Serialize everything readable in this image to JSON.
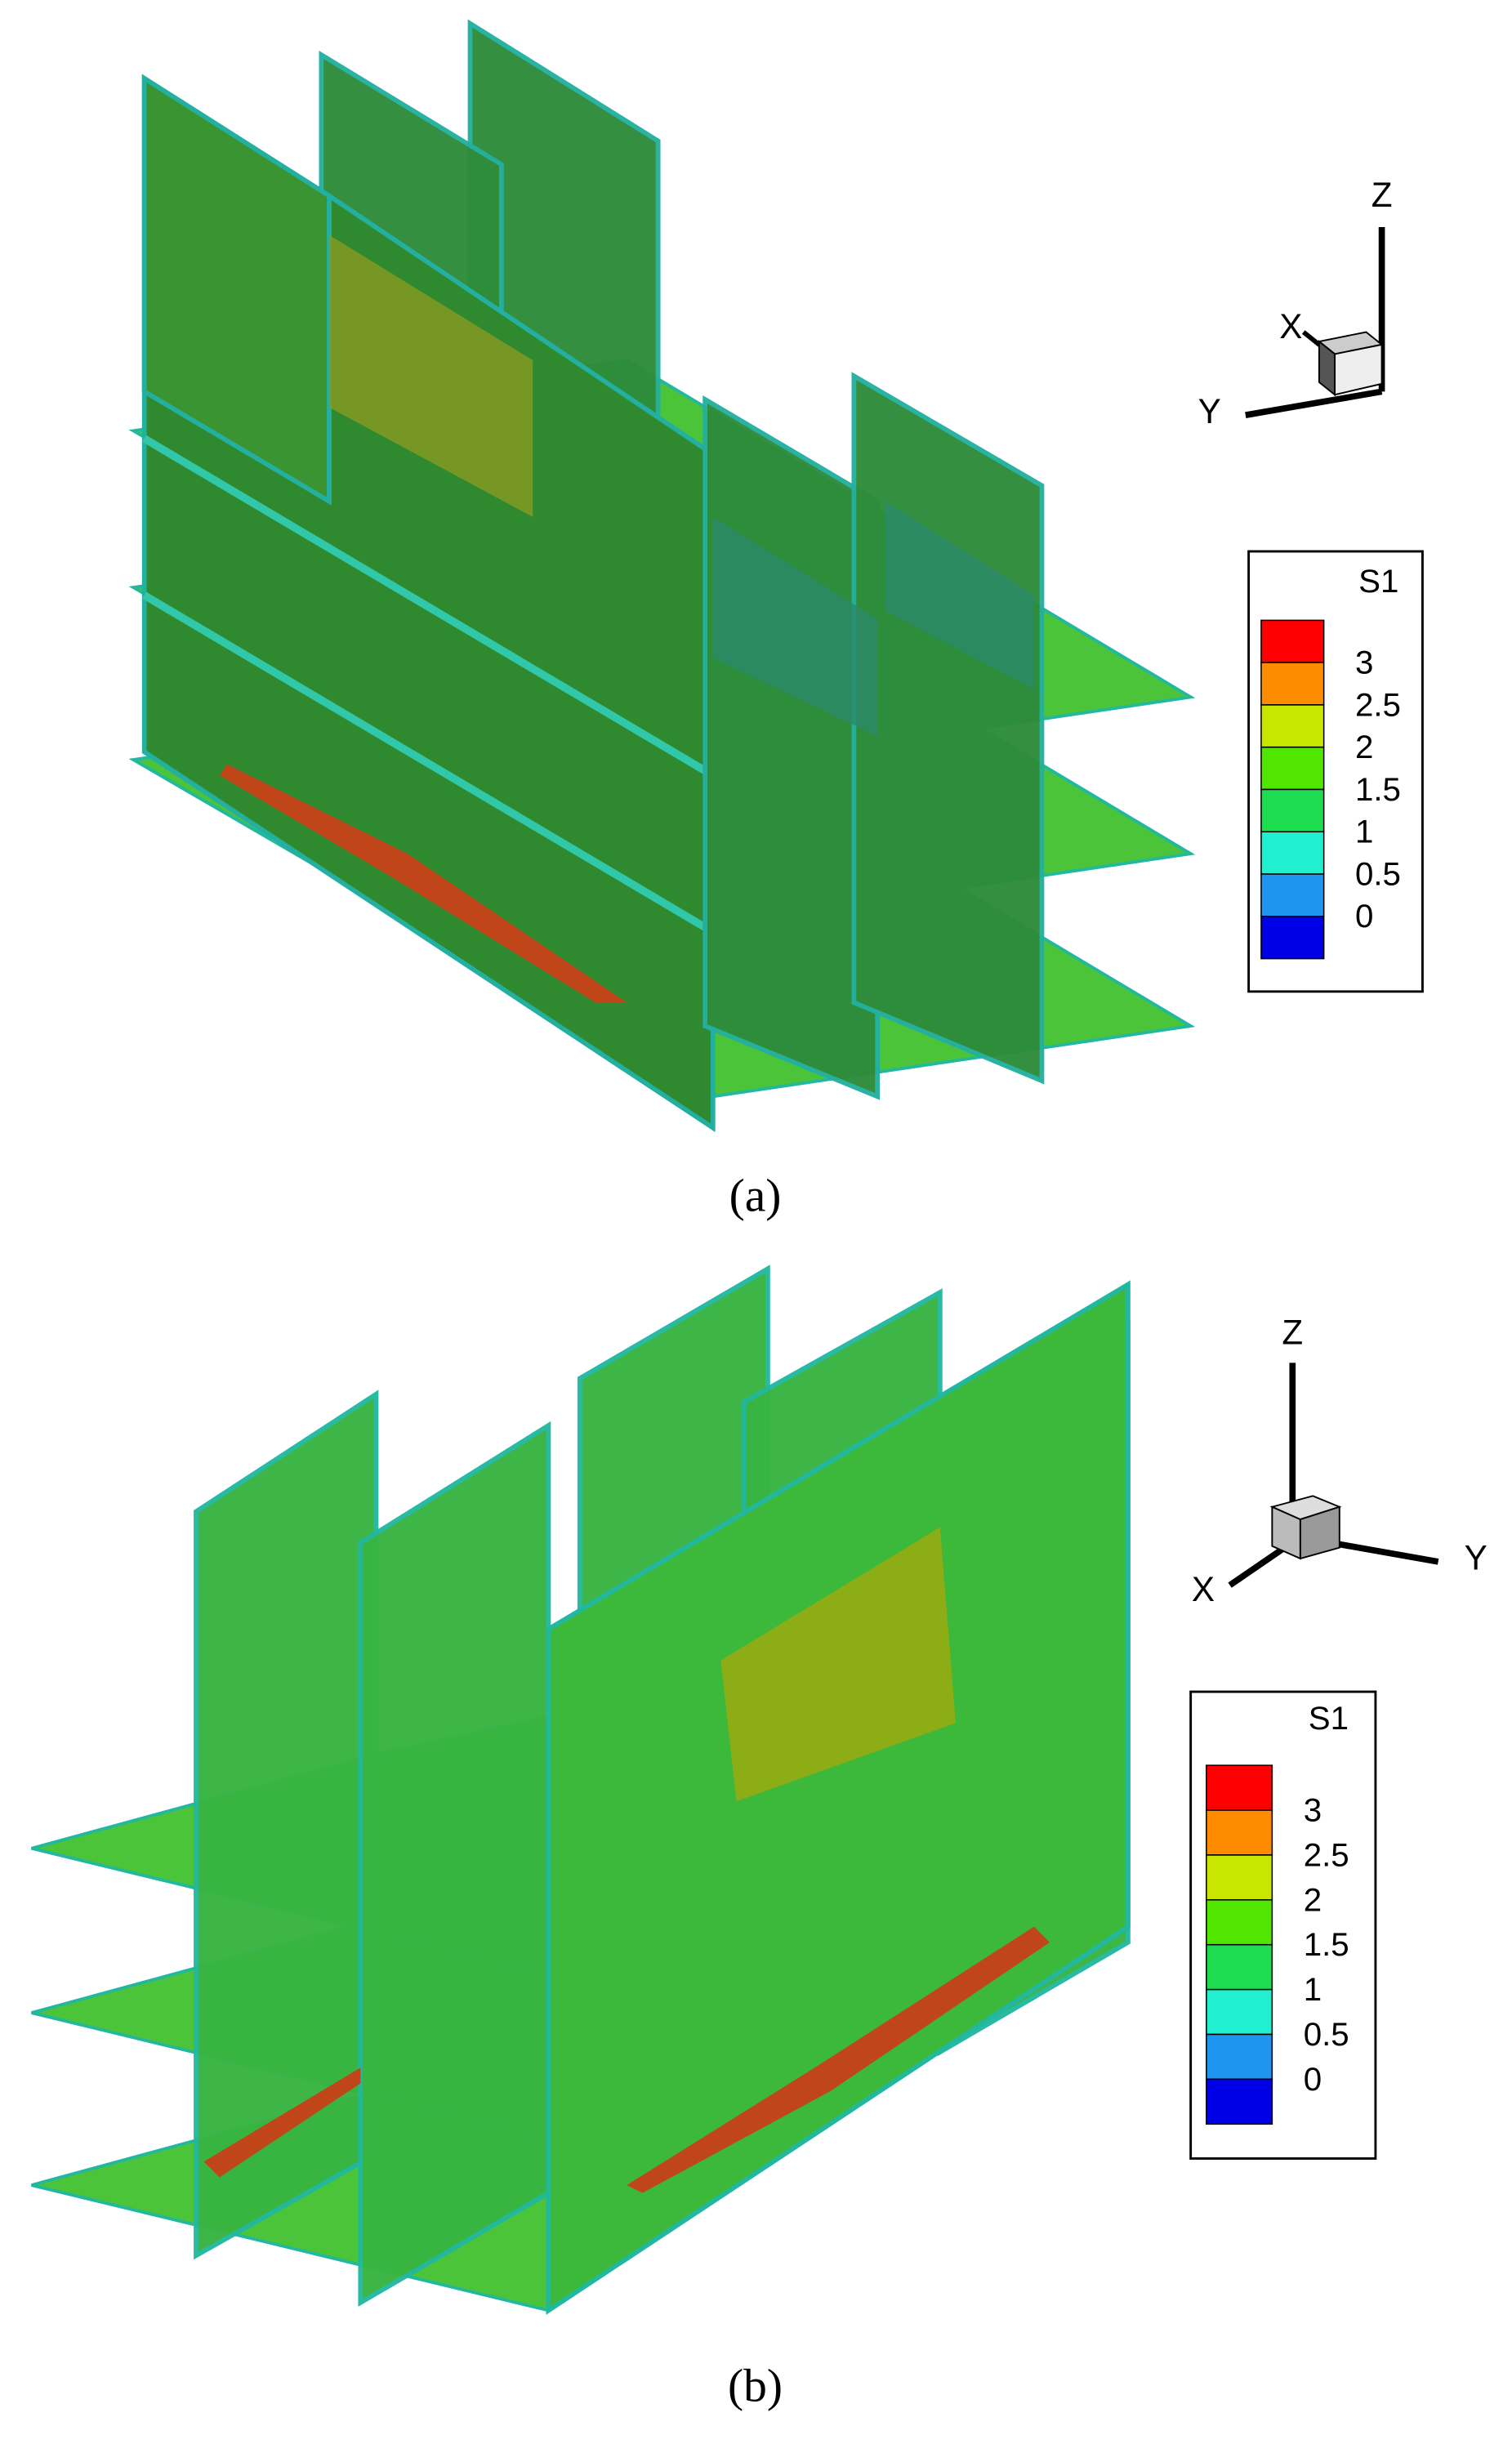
{
  "panels": [
    {
      "caption": "(a)",
      "axes": {
        "x": "X",
        "y": "Y",
        "z": "Z"
      },
      "legend": {
        "title": "S1",
        "levels": [
          3,
          2.5,
          2,
          1.5,
          1,
          0.5,
          0
        ],
        "colors": [
          "#ff0000",
          "#ff8c00",
          "#c8e600",
          "#50e600",
          "#1edc50",
          "#20f0d0",
          "#1e96f0",
          "#0000e6"
        ]
      }
    },
    {
      "caption": "(b)",
      "axes": {
        "x": "X",
        "y": "Y",
        "z": "Z"
      },
      "legend": {
        "title": "S1",
        "levels": [
          3,
          2.5,
          2,
          1.5,
          1,
          0.5,
          0
        ],
        "colors": [
          "#ff0000",
          "#ff8c00",
          "#c8e600",
          "#50e600",
          "#1edc50",
          "#20f0d0",
          "#1e96f0",
          "#0000e6"
        ]
      }
    }
  ]
}
